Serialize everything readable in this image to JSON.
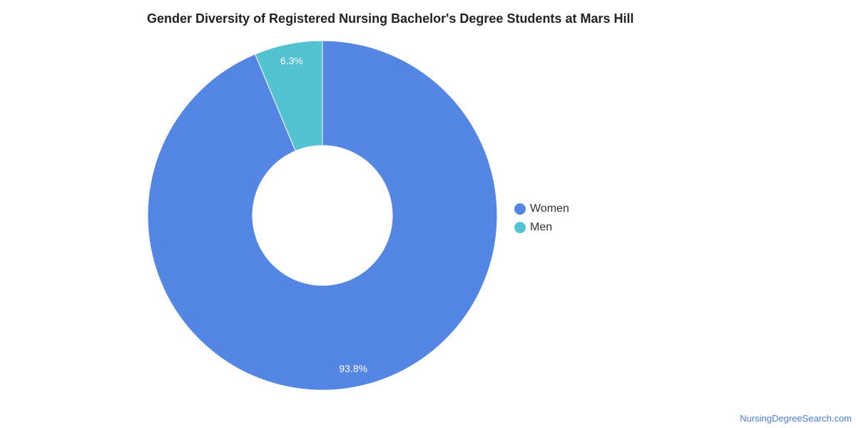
{
  "chart_data": {
    "type": "pie",
    "variant": "donut",
    "title": "Gender Diversity of Registered Nursing Bachelor's Degree Students at Mars Hill",
    "categories": [
      "Women",
      "Men"
    ],
    "values": [
      93.8,
      6.3
    ],
    "labels": [
      "93.8%",
      "6.3%"
    ],
    "colors": [
      "#5486e3",
      "#53c2d1"
    ],
    "legend_position": "right",
    "start_angle": "12 o'clock, clockwise"
  },
  "legend": {
    "items": [
      {
        "label": "Women",
        "color": "#5486e3"
      },
      {
        "label": "Men",
        "color": "#53c2d1"
      }
    ]
  },
  "credit": "NursingDegreeSearch.com"
}
